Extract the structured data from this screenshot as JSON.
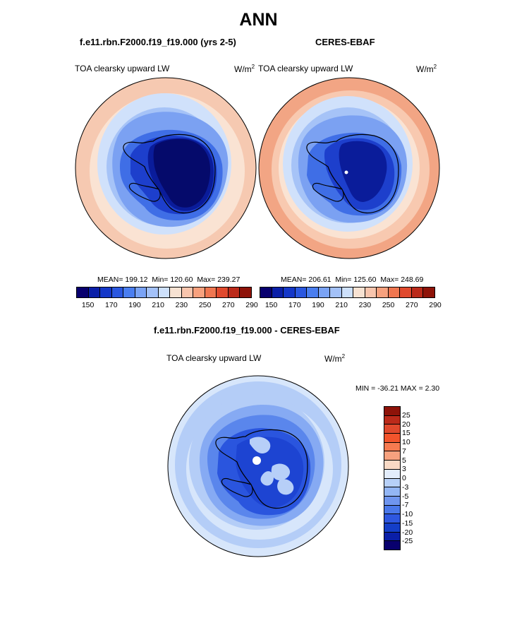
{
  "season": "ANN",
  "left_panel": {
    "case_title": "f.e11.rbn.F2000.f19_f19.000 (yrs 2-5)",
    "variable_label": "TOA clearsky upward LW",
    "units_base": "W/m",
    "units_exp": "2",
    "stats": {
      "mean_label": "MEAN=",
      "mean": "199.12",
      "min_label": "Min=",
      "min": "120.60",
      "max_label": "Max=",
      "max": "239.27"
    }
  },
  "right_panel": {
    "case_title": "CERES-EBAF",
    "variable_label": "TOA clearsky upward LW",
    "units_base": "W/m",
    "units_exp": "2",
    "stats": {
      "mean_label": "MEAN=",
      "mean": "206.61",
      "min_label": "Min=",
      "min": "125.60",
      "max_label": "Max=",
      "max": "248.69"
    }
  },
  "diff_panel": {
    "title": "f.e11.rbn.F2000.f19_f19.000 - CERES-EBAF",
    "variable_label": "TOA clearsky upward LW",
    "units_base": "W/m",
    "units_exp": "2",
    "minmax": "MIN = -36.21 MAX =   2.30"
  },
  "colorbar_abs": {
    "colors": [
      "#08006e",
      "#0a1fa8",
      "#1437c8",
      "#2a57e0",
      "#4a7ef0",
      "#7aa3f5",
      "#a3c1f8",
      "#cde0fb",
      "#f7e2d2",
      "#f8c5ad",
      "#f7a17e",
      "#ef7650",
      "#e0492d",
      "#bb2a1a",
      "#8e1309"
    ],
    "tick_labels": [
      "150",
      "170",
      "190",
      "210",
      "230",
      "250",
      "270",
      "290"
    ]
  },
  "colorbar_diff": {
    "colors": [
      "#8e1309",
      "#bb2a1a",
      "#e0492d",
      "#f2542c",
      "#f77a50",
      "#f7a17e",
      "#f8d9c5",
      "#e2ecfb",
      "#b7d0f8",
      "#93b6f5",
      "#6f95ef",
      "#4a78ea",
      "#2e57e0",
      "#143ec8",
      "#0a1fa8",
      "#08006e"
    ],
    "tick_labels": [
      "25",
      "20",
      "15",
      "10",
      "7",
      "5",
      "3",
      "0",
      "-3",
      "-5",
      "-7",
      "-10",
      "-15",
      "-20",
      "-25"
    ]
  },
  "map_colors": {
    "ring1": "#f6c9b1",
    "ring2": "#fae3d3",
    "ring3": "#d0e1fb",
    "ring4": "#a6c3f7",
    "ring5": "#7ba1f2",
    "ice_edge": "#3f6ee6",
    "ice_mid": "#1d3fcc",
    "ice_core": "#0a1c9a",
    "ice_deep": "#050a6b",
    "obs_outer": "#f2a584",
    "obs_ring2": "#f8c9b0",
    "diff_outer": "#d7e6fb",
    "diff_ring2": "#b4cdf7",
    "diff_ring3": "#86aaf3",
    "diff_ring4": "#5a86ec",
    "diff_ice": "#2a55de",
    "diff_ice2": "#1d44d2",
    "diff_patch": "#b7cff8"
  }
}
